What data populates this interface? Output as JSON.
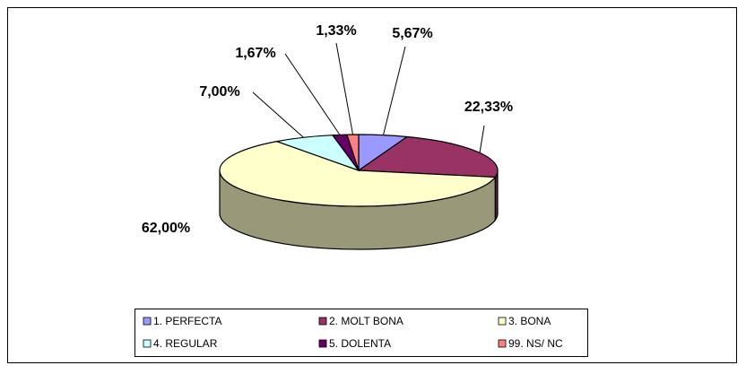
{
  "chart_data": {
    "type": "pie3d",
    "categories": [
      "1. PERFECTA",
      "2. MOLT BONA",
      "3. BONA",
      "4. REGULAR",
      "5. DOLENTA",
      "99. NS/ NC"
    ],
    "values": [
      5.67,
      22.33,
      62.0,
      7.0,
      1.67,
      1.33
    ],
    "value_labels": [
      "5,67%",
      "22,33%",
      "62,00%",
      "7,00%",
      "1,67%",
      "1,33%"
    ],
    "colors": [
      "#9999ff",
      "#993366",
      "#ffffcc",
      "#ccffff",
      "#660066",
      "#ff8080"
    ],
    "legend": "bottom"
  }
}
